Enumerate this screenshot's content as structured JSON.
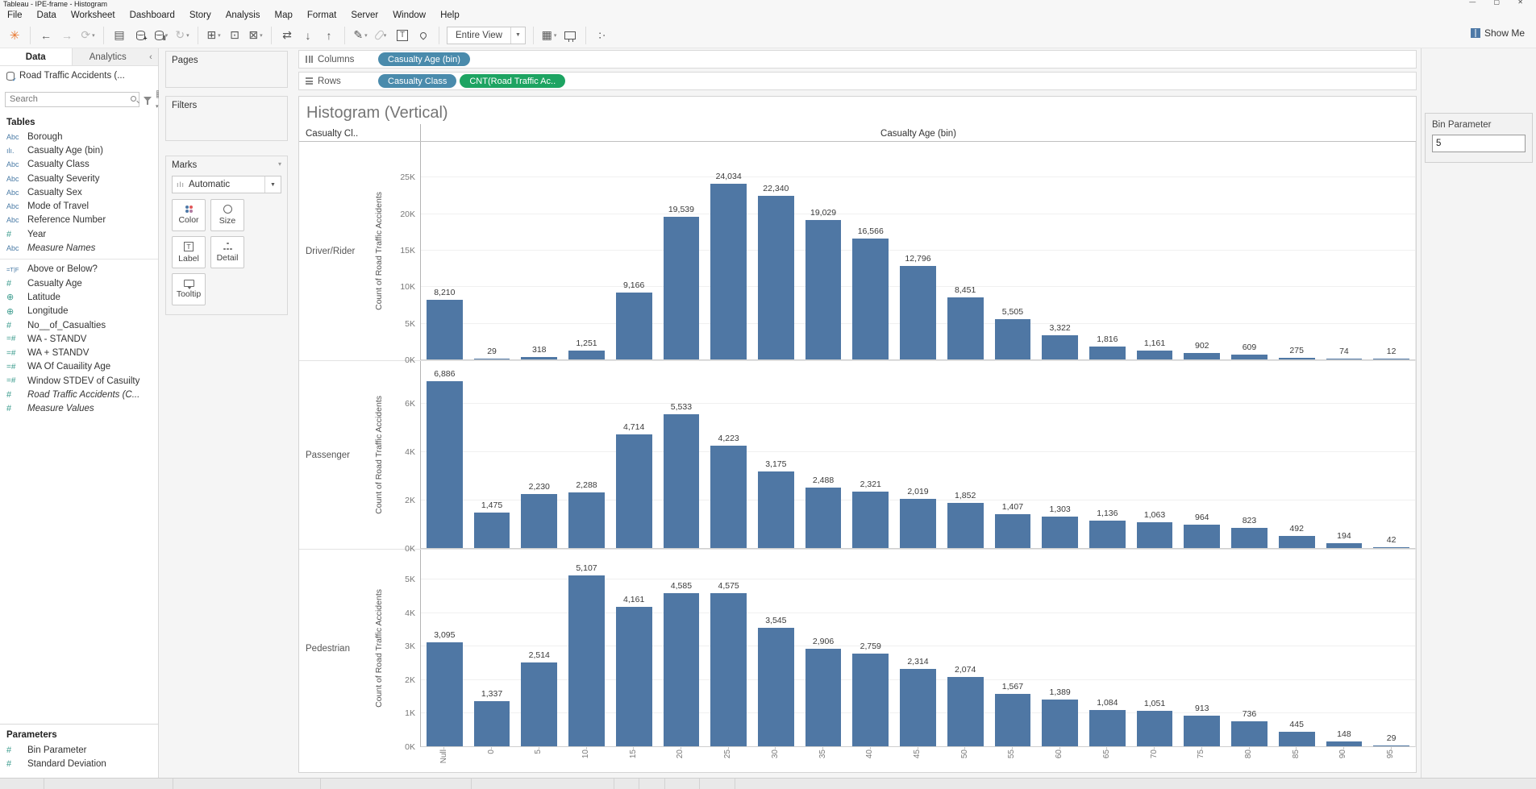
{
  "window": {
    "title": "Tableau - IPE-frame - Histogram"
  },
  "menu": {
    "items": [
      "File",
      "Data",
      "Worksheet",
      "Dashboard",
      "Story",
      "Analysis",
      "Map",
      "Format",
      "Server",
      "Window",
      "Help"
    ]
  },
  "toolbar": {
    "view_mode": "Entire View",
    "show_me": "Show Me",
    "buttons": [
      {
        "name": "tableau-logo",
        "glyph": "✳",
        "logo": true
      },
      {
        "sep": true
      },
      {
        "name": "back-arrow",
        "glyph": "←"
      },
      {
        "name": "forward-arrow",
        "glyph": "→",
        "muted": true
      },
      {
        "name": "redo-icon",
        "glyph": "⟳",
        "muted": true,
        "caret": true
      },
      {
        "sep": true
      },
      {
        "name": "save-icon",
        "glyph": "▤"
      },
      {
        "name": "add-datasource-icon",
        "kind": "cyl",
        "mark": "+"
      },
      {
        "name": "pause-datasource-icon",
        "kind": "cyl",
        "mark": "‖",
        "caret": true
      },
      {
        "name": "refresh-icon",
        "glyph": "↻",
        "muted": true,
        "caret": true
      },
      {
        "sep": true
      },
      {
        "name": "new-worksheet-icon",
        "glyph": "⊞",
        "caret": true
      },
      {
        "name": "duplicate-icon",
        "glyph": "⊡"
      },
      {
        "name": "clear-sheet-icon",
        "glyph": "⊠",
        "caret": true
      },
      {
        "sep": true
      },
      {
        "name": "swap-rows-columns-icon",
        "glyph": "⇄"
      },
      {
        "name": "sort-ascending-icon",
        "glyph": "↓"
      },
      {
        "name": "sort-descending-icon",
        "glyph": "↑"
      },
      {
        "sep": true
      },
      {
        "name": "highlight-icon",
        "glyph": "✎",
        "caret": true
      },
      {
        "name": "attachment-icon",
        "kind": "clip",
        "caret": true
      },
      {
        "name": "text-label-icon",
        "kind": "tbox"
      },
      {
        "name": "pin-icon",
        "kind": "pin"
      },
      {
        "sep": true
      },
      {
        "name": "view-mode-dropdown",
        "kind": "dropdown"
      },
      {
        "sep": true
      },
      {
        "name": "show-me-grid-icon",
        "glyph": "▦",
        "caret": true
      },
      {
        "name": "presentation-icon",
        "kind": "monitor"
      },
      {
        "sep": true
      },
      {
        "name": "share-icon",
        "kind": "share"
      }
    ]
  },
  "data_panel": {
    "tabs": [
      {
        "label": "Data",
        "active": true
      },
      {
        "label": "Analytics",
        "active": false
      }
    ],
    "collapse_icon": "‹",
    "datasource": "Road Traffic Accidents (...",
    "search_placeholder": "Search",
    "tables_label": "Tables",
    "fields": [
      {
        "icon": "Abc",
        "label": "Borough",
        "group": "dimension"
      },
      {
        "icon": "bin",
        "label": "Casualty Age (bin)",
        "group": "dimension"
      },
      {
        "icon": "Abc",
        "label": "Casualty Class",
        "group": "dimension"
      },
      {
        "icon": "Abc",
        "label": "Casualty Severity",
        "group": "dimension"
      },
      {
        "icon": "Abc",
        "label": "Casualty Sex",
        "group": "dimension"
      },
      {
        "icon": "Abc",
        "label": "Mode of Travel",
        "group": "dimension"
      },
      {
        "icon": "Abc",
        "label": "Reference Number",
        "group": "dimension"
      },
      {
        "icon": "num",
        "label": "Year",
        "group": "measure"
      },
      {
        "icon": "Abc",
        "label": "Measure Names",
        "group": "dimension",
        "italic": true
      },
      {
        "separator": true
      },
      {
        "icon": "bool",
        "label": "Above or Below?",
        "group": "dimension"
      },
      {
        "icon": "num",
        "label": "Casualty Age",
        "group": "measure"
      },
      {
        "icon": "globe",
        "label": "Latitude",
        "group": "measure"
      },
      {
        "icon": "globe",
        "label": "Longitude",
        "group": "measure"
      },
      {
        "icon": "num",
        "label": "No__of_Casualties",
        "group": "measure"
      },
      {
        "icon": "calc-num",
        "label": "WA - STANDV",
        "group": "measure"
      },
      {
        "icon": "calc-num",
        "label": "WA + STANDV",
        "group": "measure"
      },
      {
        "icon": "calc-num",
        "label": "WA Of Cauaility Age",
        "group": "measure"
      },
      {
        "icon": "calc-num",
        "label": "Window STDEV of Casuilty",
        "group": "measure"
      },
      {
        "icon": "num",
        "label": "Road Traffic Accidents (C...",
        "group": "measure",
        "italic": true
      },
      {
        "icon": "num",
        "label": "Measure Values",
        "group": "measure",
        "italic": true
      }
    ],
    "parameters_label": "Parameters",
    "parameters": [
      {
        "icon": "num",
        "label": "Bin Parameter"
      },
      {
        "icon": "num",
        "label": "Standard Deviation"
      }
    ]
  },
  "cards": {
    "pages_label": "Pages",
    "filters_label": "Filters",
    "marks_label": "Marks",
    "mark_type": "Automatic",
    "marks_buttons": [
      {
        "name": "color",
        "label": "Color"
      },
      {
        "name": "size",
        "label": "Size"
      },
      {
        "name": "label",
        "label": "Label"
      },
      {
        "name": "detail",
        "label": "Detail"
      },
      {
        "name": "tooltip",
        "label": "Tooltip"
      }
    ]
  },
  "shelves": {
    "columns_label": "Columns",
    "rows_label": "Rows",
    "columns_pills": [
      {
        "label": "Casualty Age (bin)",
        "type": "dimension"
      }
    ],
    "rows_pills": [
      {
        "label": "Casualty Class",
        "type": "dimension"
      },
      {
        "label": "CNT(Road Traffic Ac..",
        "type": "measure"
      }
    ]
  },
  "colors": {
    "bar": "#4f77a4",
    "pill_dimension": "#4a8bac",
    "pill_measure": "#1da462",
    "dimension_icon": "#4a7ba6",
    "measure_icon": "#3c9c8e"
  },
  "bin_parameter": {
    "label": "Bin Parameter",
    "value": "5"
  },
  "chart_data": {
    "type": "bar",
    "title": "Histogram (Vertical)",
    "row_header": "Casualty Cl..",
    "col_header": "Casualty Age (bin)",
    "ylabel": "Count of Road Traffic Accidents",
    "xlabel": "Casualty Age (bin)",
    "legend": "none",
    "grid": true,
    "categories": [
      "Null",
      "0",
      "5",
      "10",
      "15",
      "20",
      "25",
      "30",
      "35",
      "40",
      "45",
      "50",
      "55",
      "60",
      "65",
      "70",
      "75",
      "80",
      "85",
      "90",
      "95"
    ],
    "series": [
      {
        "name": "Driver/Rider",
        "values": [
          8210,
          29,
          318,
          1251,
          9166,
          19539,
          24034,
          22340,
          19029,
          16566,
          12796,
          8451,
          5505,
          3322,
          1816,
          1161,
          902,
          609,
          275,
          74,
          12
        ],
        "yticks": [
          0,
          5000,
          10000,
          15000,
          20000,
          25000
        ],
        "ytick_labels": [
          "0K",
          "5K",
          "10K",
          "15K",
          "20K",
          "25K"
        ],
        "ylim": [
          0,
          30000
        ]
      },
      {
        "name": "Passenger",
        "values": [
          6886,
          1475,
          2230,
          2288,
          4714,
          5533,
          4223,
          3175,
          2488,
          2321,
          2019,
          1852,
          1407,
          1303,
          1136,
          1063,
          964,
          823,
          492,
          194,
          42
        ],
        "yticks": [
          0,
          2000,
          4000,
          6000
        ],
        "ytick_labels": [
          "0K",
          "2K",
          "4K",
          "6K"
        ],
        "ylim": [
          0,
          7800
        ]
      },
      {
        "name": "Pedestrian",
        "values": [
          3095,
          1337,
          2514,
          5107,
          4161,
          4585,
          4575,
          3545,
          2906,
          2759,
          2314,
          2074,
          1567,
          1389,
          1084,
          1051,
          913,
          736,
          445,
          148,
          29
        ],
        "yticks": [
          0,
          1000,
          2000,
          3000,
          4000,
          5000
        ],
        "ytick_labels": [
          "0K",
          "1K",
          "2K",
          "3K",
          "4K",
          "5K"
        ],
        "ylim": [
          0,
          5900
        ]
      }
    ]
  }
}
